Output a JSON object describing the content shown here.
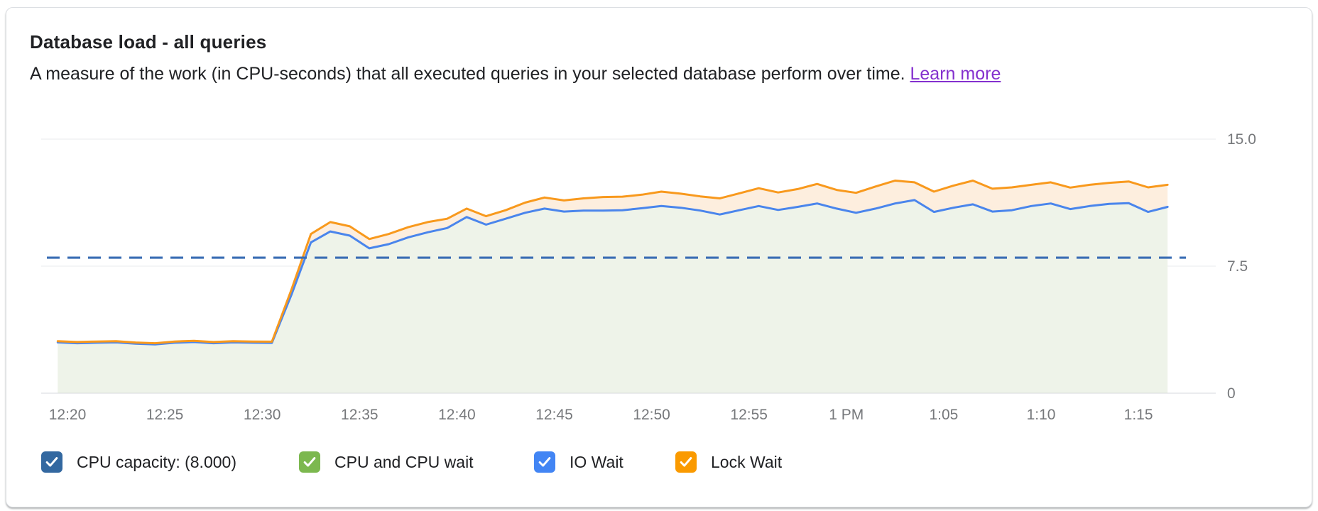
{
  "card": {
    "title": "Database load - all queries",
    "subtitle": "A measure of the work (in CPU-seconds) that all executed queries in your selected database perform over time.",
    "learn_more_label": "Learn more",
    "learn_more_color": "#8430ce"
  },
  "chart_data": {
    "type": "area",
    "title": "Database load - all queries",
    "ylabel": "",
    "xlabel": "",
    "ylim": [
      0,
      15
    ],
    "y_ticks": [
      {
        "label": "15.0",
        "value": 15
      },
      {
        "label": "7.5",
        "value": 7.5
      },
      {
        "label": "0",
        "value": 0
      }
    ],
    "x_axis": {
      "tick_labels": [
        "12:20",
        "12:25",
        "12:30",
        "12:35",
        "12:40",
        "12:45",
        "12:50",
        "12:55",
        "1 PM",
        "1:05",
        "1:10",
        "1:15"
      ],
      "tick_minutes": [
        0,
        5,
        10,
        15,
        20,
        25,
        30,
        35,
        40,
        45,
        50,
        55
      ],
      "start_minute": -0.5,
      "step_minutes": 1
    },
    "capacity_line": {
      "label": "CPU capacity: (8.000)",
      "value": 8.0,
      "color": "#3a6db4",
      "style": "dashed"
    },
    "grid": {
      "color": "#e9ebee",
      "baseline_color": "#d7d9dc",
      "tick_text_color": "#76787b"
    },
    "series": [
      {
        "name": "IO Wait",
        "role": "blue-line-cumulative",
        "line_color": "#4a85ec",
        "fill_below_color": "#eef3e9",
        "values": [
          3.0,
          2.95,
          2.98,
          3.0,
          2.92,
          2.88,
          2.98,
          3.02,
          2.95,
          3.0,
          2.98,
          2.97,
          5.8,
          8.9,
          9.55,
          9.3,
          8.55,
          8.8,
          9.2,
          9.5,
          9.75,
          10.4,
          9.95,
          10.3,
          10.65,
          10.9,
          10.72,
          10.78,
          10.78,
          10.8,
          10.92,
          11.05,
          10.95,
          10.78,
          10.55,
          10.8,
          11.05,
          10.82,
          11.0,
          11.2,
          10.9,
          10.65,
          10.9,
          11.2,
          11.4,
          10.7,
          10.95,
          11.15,
          10.72,
          10.8,
          11.05,
          11.2,
          10.87,
          11.05,
          11.18,
          11.22,
          10.7,
          11.0
        ]
      },
      {
        "name": "Lock Wait",
        "role": "orange-line-total",
        "line_color": "#f8991d",
        "fill_to_blue_color": "#fdeede",
        "values": [
          3.07,
          3.02,
          3.05,
          3.07,
          2.99,
          2.95,
          3.05,
          3.09,
          3.02,
          3.07,
          3.05,
          3.04,
          6.1,
          9.4,
          10.1,
          9.85,
          9.1,
          9.4,
          9.8,
          10.1,
          10.3,
          10.9,
          10.45,
          10.8,
          11.25,
          11.55,
          11.38,
          11.5,
          11.58,
          11.6,
          11.72,
          11.9,
          11.78,
          11.62,
          11.5,
          11.8,
          12.1,
          11.85,
          12.05,
          12.35,
          12.0,
          11.83,
          12.2,
          12.55,
          12.45,
          11.9,
          12.25,
          12.55,
          12.07,
          12.15,
          12.3,
          12.45,
          12.14,
          12.3,
          12.42,
          12.5,
          12.15,
          12.3
        ]
      }
    ],
    "legend_position": "bottom"
  },
  "legend": {
    "items": [
      {
        "label": "CPU capacity: (8.000)",
        "color": "#3368a0",
        "checked": true
      },
      {
        "label": "CPU and CPU wait",
        "color": "#7cb84f",
        "checked": true
      },
      {
        "label": "IO Wait",
        "color": "#4285f4",
        "checked": true
      },
      {
        "label": "Lock Wait",
        "color": "#fa9a00",
        "checked": true
      }
    ]
  }
}
